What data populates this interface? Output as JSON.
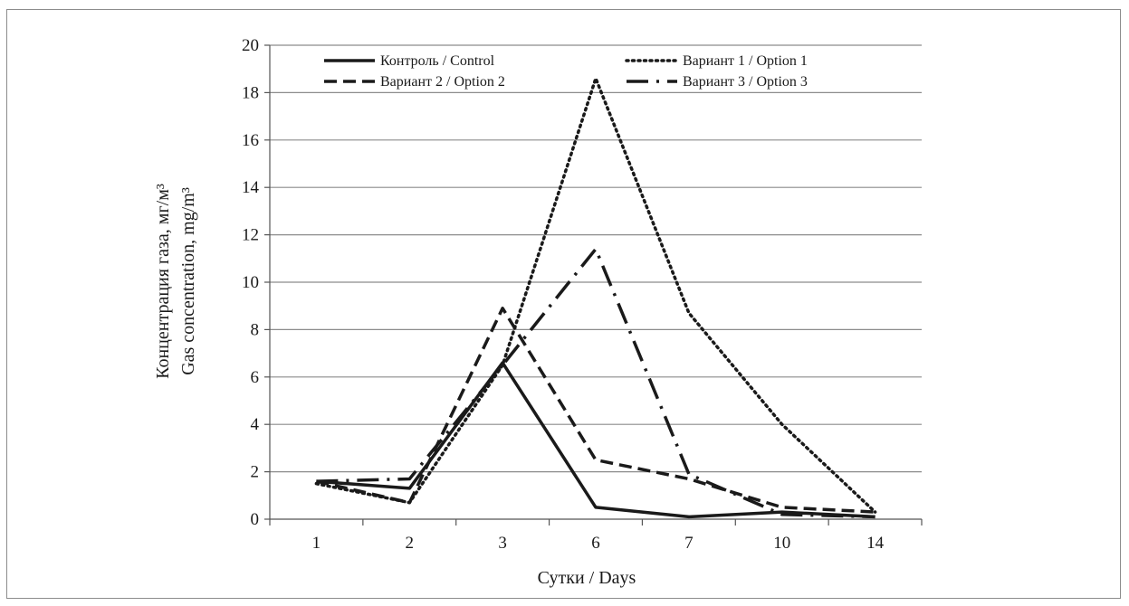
{
  "chart_data": {
    "type": "line",
    "categories": [
      "1",
      "2",
      "3",
      "6",
      "7",
      "10",
      "14"
    ],
    "ylim": [
      0,
      20
    ],
    "yticks": [
      "0",
      "2",
      "4",
      "6",
      "8",
      "10",
      "12",
      "14",
      "16",
      "18",
      "20"
    ],
    "xlabel": "Сутки / Days",
    "ylabel_line1": "Концентрация газа, мг/м³",
    "ylabel_line2": "Gas concentration, mg/m³",
    "grid": true,
    "legend_position": "top",
    "series": [
      {
        "name": "Контроль / Control",
        "style": "solid",
        "values": [
          1.6,
          1.3,
          6.6,
          0.5,
          0.1,
          0.3,
          0.1
        ]
      },
      {
        "name": "Вариант 1 / Option 1",
        "style": "dotted",
        "values": [
          1.5,
          0.7,
          6.5,
          18.6,
          8.7,
          4.0,
          0.3
        ]
      },
      {
        "name": "Вариант 2 / Option 2",
        "style": "dashed",
        "values": [
          1.6,
          0.7,
          8.9,
          2.5,
          1.7,
          0.5,
          0.3
        ]
      },
      {
        "name": "Вариант 3 / Option 3",
        "style": "dashdot",
        "values": [
          1.6,
          1.7,
          6.5,
          11.4,
          1.9,
          0.2,
          0.1
        ]
      }
    ]
  }
}
